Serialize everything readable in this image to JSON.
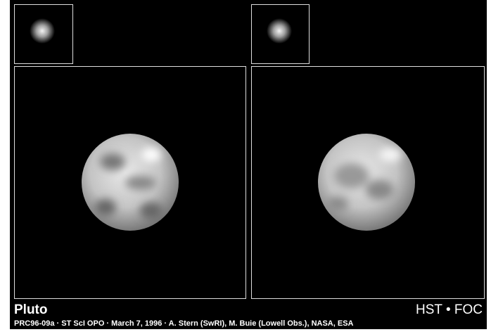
{
  "caption": {
    "title": "Pluto",
    "instrument": "HST • FOC",
    "credit": "PRC96-09a · ST ScI OPO · March 7, 1996 · A. Stern (SwRI), M. Buie (Lowell Obs.), NASA, ESA"
  }
}
